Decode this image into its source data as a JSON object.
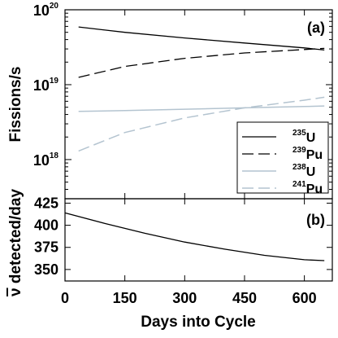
{
  "chart_data": [
    {
      "panel_label": "(a)",
      "type": "line",
      "ylabel": "Fissions/s",
      "yscale": "log",
      "ylim": [
        3e+17,
        1e+20
      ],
      "xlim": [
        0,
        670
      ],
      "y_ticks": [
        {
          "value": 1e+18,
          "base": "10",
          "exp": "18"
        },
        {
          "value": 1e+19,
          "base": "10",
          "exp": "19"
        },
        {
          "value": 1e+20,
          "base": "10",
          "exp": "20"
        }
      ],
      "legend_position": "lower-right",
      "series": [
        {
          "name": "U",
          "name_sup": "235",
          "color": "#000000",
          "dash": "solid",
          "x": [
            34,
            150,
            300,
            450,
            600,
            650
          ],
          "y": [
            5.9e+19,
            5e+19,
            4.2e+19,
            3.6e+19,
            3.1e+19,
            2.9e+19
          ]
        },
        {
          "name": "Pu",
          "name_sup": "239",
          "color": "#000000",
          "dash": "dashed",
          "x": [
            34,
            150,
            300,
            450,
            600,
            650
          ],
          "y": [
            1.25e+19,
            1.75e+19,
            2.25e+19,
            2.65e+19,
            2.95e+19,
            3.05e+19
          ]
        },
        {
          "name": "U",
          "name_sup": "238",
          "color": "#b4c4d0",
          "dash": "solid",
          "x": [
            34,
            150,
            300,
            450,
            600,
            650
          ],
          "y": [
            4.4e+18,
            4.5e+18,
            4.7e+18,
            4.9e+18,
            5.1e+18,
            5.2e+18
          ]
        },
        {
          "name": "Pu",
          "name_sup": "241",
          "color": "#b4c4d0",
          "dash": "dashed",
          "x": [
            34,
            150,
            300,
            450,
            600,
            650
          ],
          "y": [
            1.3e+18,
            2.3e+18,
            3.6e+18,
            4.9e+18,
            6.2e+18,
            6.8e+18
          ]
        }
      ]
    },
    {
      "panel_label": "(b)",
      "type": "line",
      "ylabel_overbar": "ν",
      "ylabel": " detected/day",
      "xlabel": "Days into Cycle",
      "xlim": [
        0,
        670
      ],
      "ylim": [
        337,
        430
      ],
      "x_ticks": [
        0,
        150,
        300,
        450,
        600
      ],
      "y_ticks": [
        350,
        375,
        400,
        425
      ],
      "series": [
        {
          "color": "#000000",
          "x": [
            0,
            100,
            200,
            300,
            400,
            500,
            600,
            650
          ],
          "y": [
            414,
            402,
            391,
            381,
            373,
            366,
            361,
            360
          ]
        }
      ]
    }
  ]
}
